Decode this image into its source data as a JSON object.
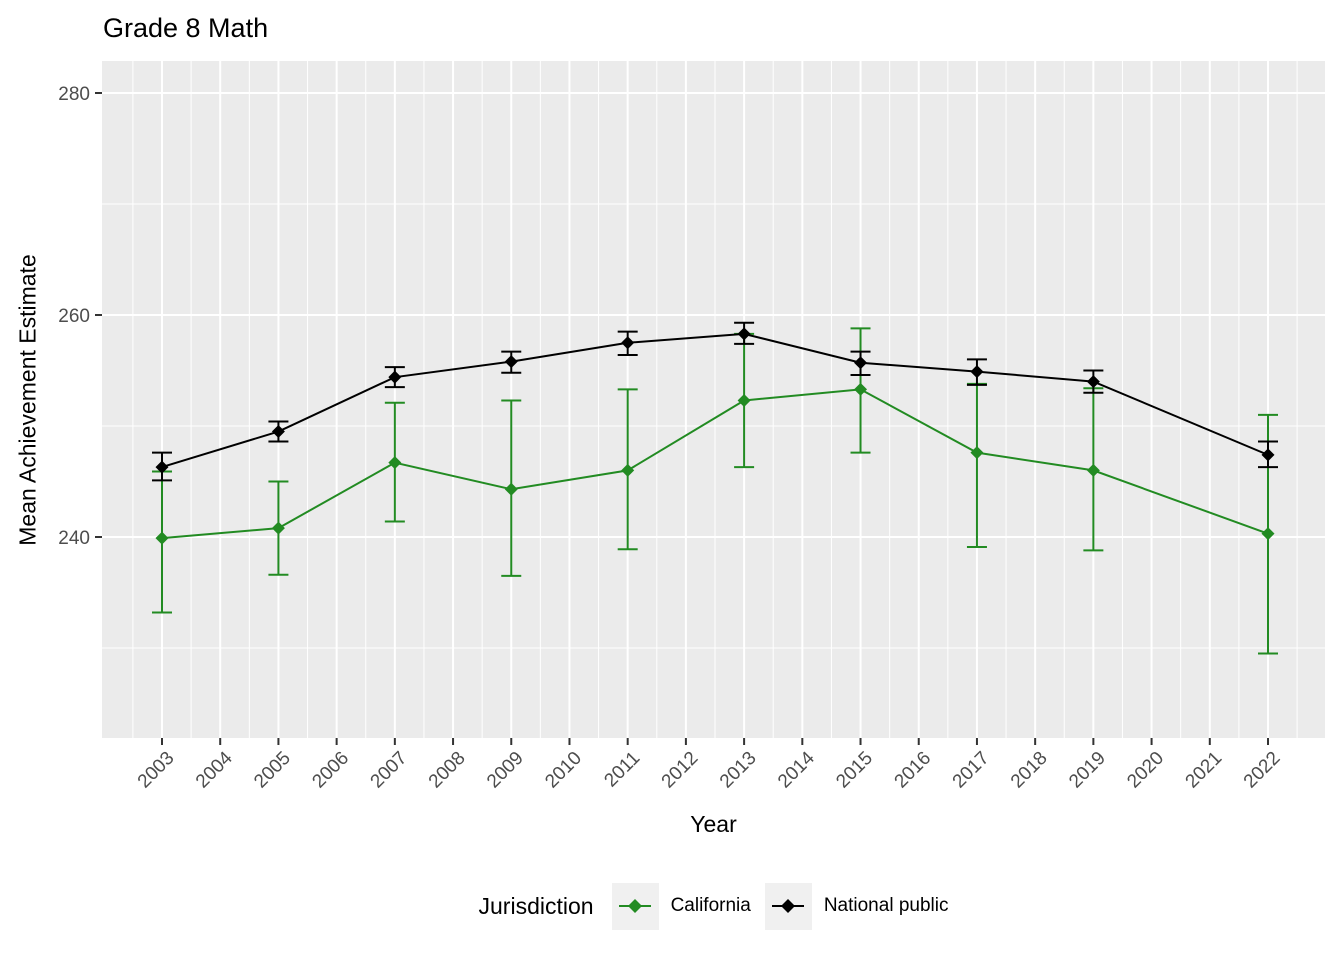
{
  "title": "Grade 8 Math",
  "axes": {
    "x_label": "Year",
    "y_label": "Mean Achievement Estimate",
    "x_ticks": [
      "2003",
      "2004",
      "2005",
      "2006",
      "2007",
      "2008",
      "2009",
      "2010",
      "2011",
      "2012",
      "2013",
      "2014",
      "2015",
      "2016",
      "2017",
      "2018",
      "2019",
      "2020",
      "2021",
      "2022"
    ],
    "y_ticks": [
      "240",
      "260",
      "280"
    ]
  },
  "legend": {
    "title": "Jurisdiction",
    "entries": [
      {
        "label": "California",
        "color": "#228B22"
      },
      {
        "label": "National public",
        "color": "#000000"
      }
    ]
  },
  "colors": {
    "panel_bg": "#EBEBEB",
    "grid": "#FFFFFF",
    "tick_mark": "#333333",
    "tick_text": "#4D4D4D",
    "legend_key_bg": "#F0F0F0"
  },
  "chart_data": {
    "type": "line",
    "title": "Grade 8 Math",
    "xlabel": "Year",
    "ylabel": "Mean Achievement Estimate",
    "x_range": [
      2003,
      2022
    ],
    "ylim_shown": [
      222,
      283
    ],
    "y_major_ticks": [
      240,
      260,
      280
    ],
    "y_minor_gridlines": [
      230,
      250,
      270
    ],
    "grid": true,
    "legend_position": "bottom",
    "error_bars": true,
    "x": [
      2003,
      2005,
      2007,
      2009,
      2011,
      2013,
      2015,
      2017,
      2019,
      2022
    ],
    "series": [
      {
        "name": "California",
        "color": "#228B22",
        "values": [
          239.9,
          240.8,
          246.7,
          244.3,
          246.0,
          252.3,
          253.3,
          247.6,
          246.0,
          240.3
        ],
        "ci_low": [
          233.2,
          236.6,
          241.4,
          236.5,
          238.9,
          246.3,
          247.6,
          239.1,
          238.8,
          229.5
        ],
        "ci_high": [
          245.9,
          245.0,
          252.1,
          252.3,
          253.3,
          258.3,
          258.8,
          253.8,
          253.4,
          251.0
        ]
      },
      {
        "name": "National public",
        "color": "#000000",
        "values": [
          246.3,
          249.5,
          254.4,
          255.8,
          257.5,
          258.3,
          255.7,
          254.9,
          254.0,
          247.4
        ],
        "ci_low": [
          245.1,
          248.6,
          253.5,
          254.8,
          256.4,
          257.4,
          254.6,
          253.7,
          253.0,
          246.3
        ],
        "ci_high": [
          247.6,
          250.4,
          255.3,
          256.7,
          258.5,
          259.3,
          256.7,
          256.0,
          255.0,
          248.6
        ]
      }
    ]
  }
}
